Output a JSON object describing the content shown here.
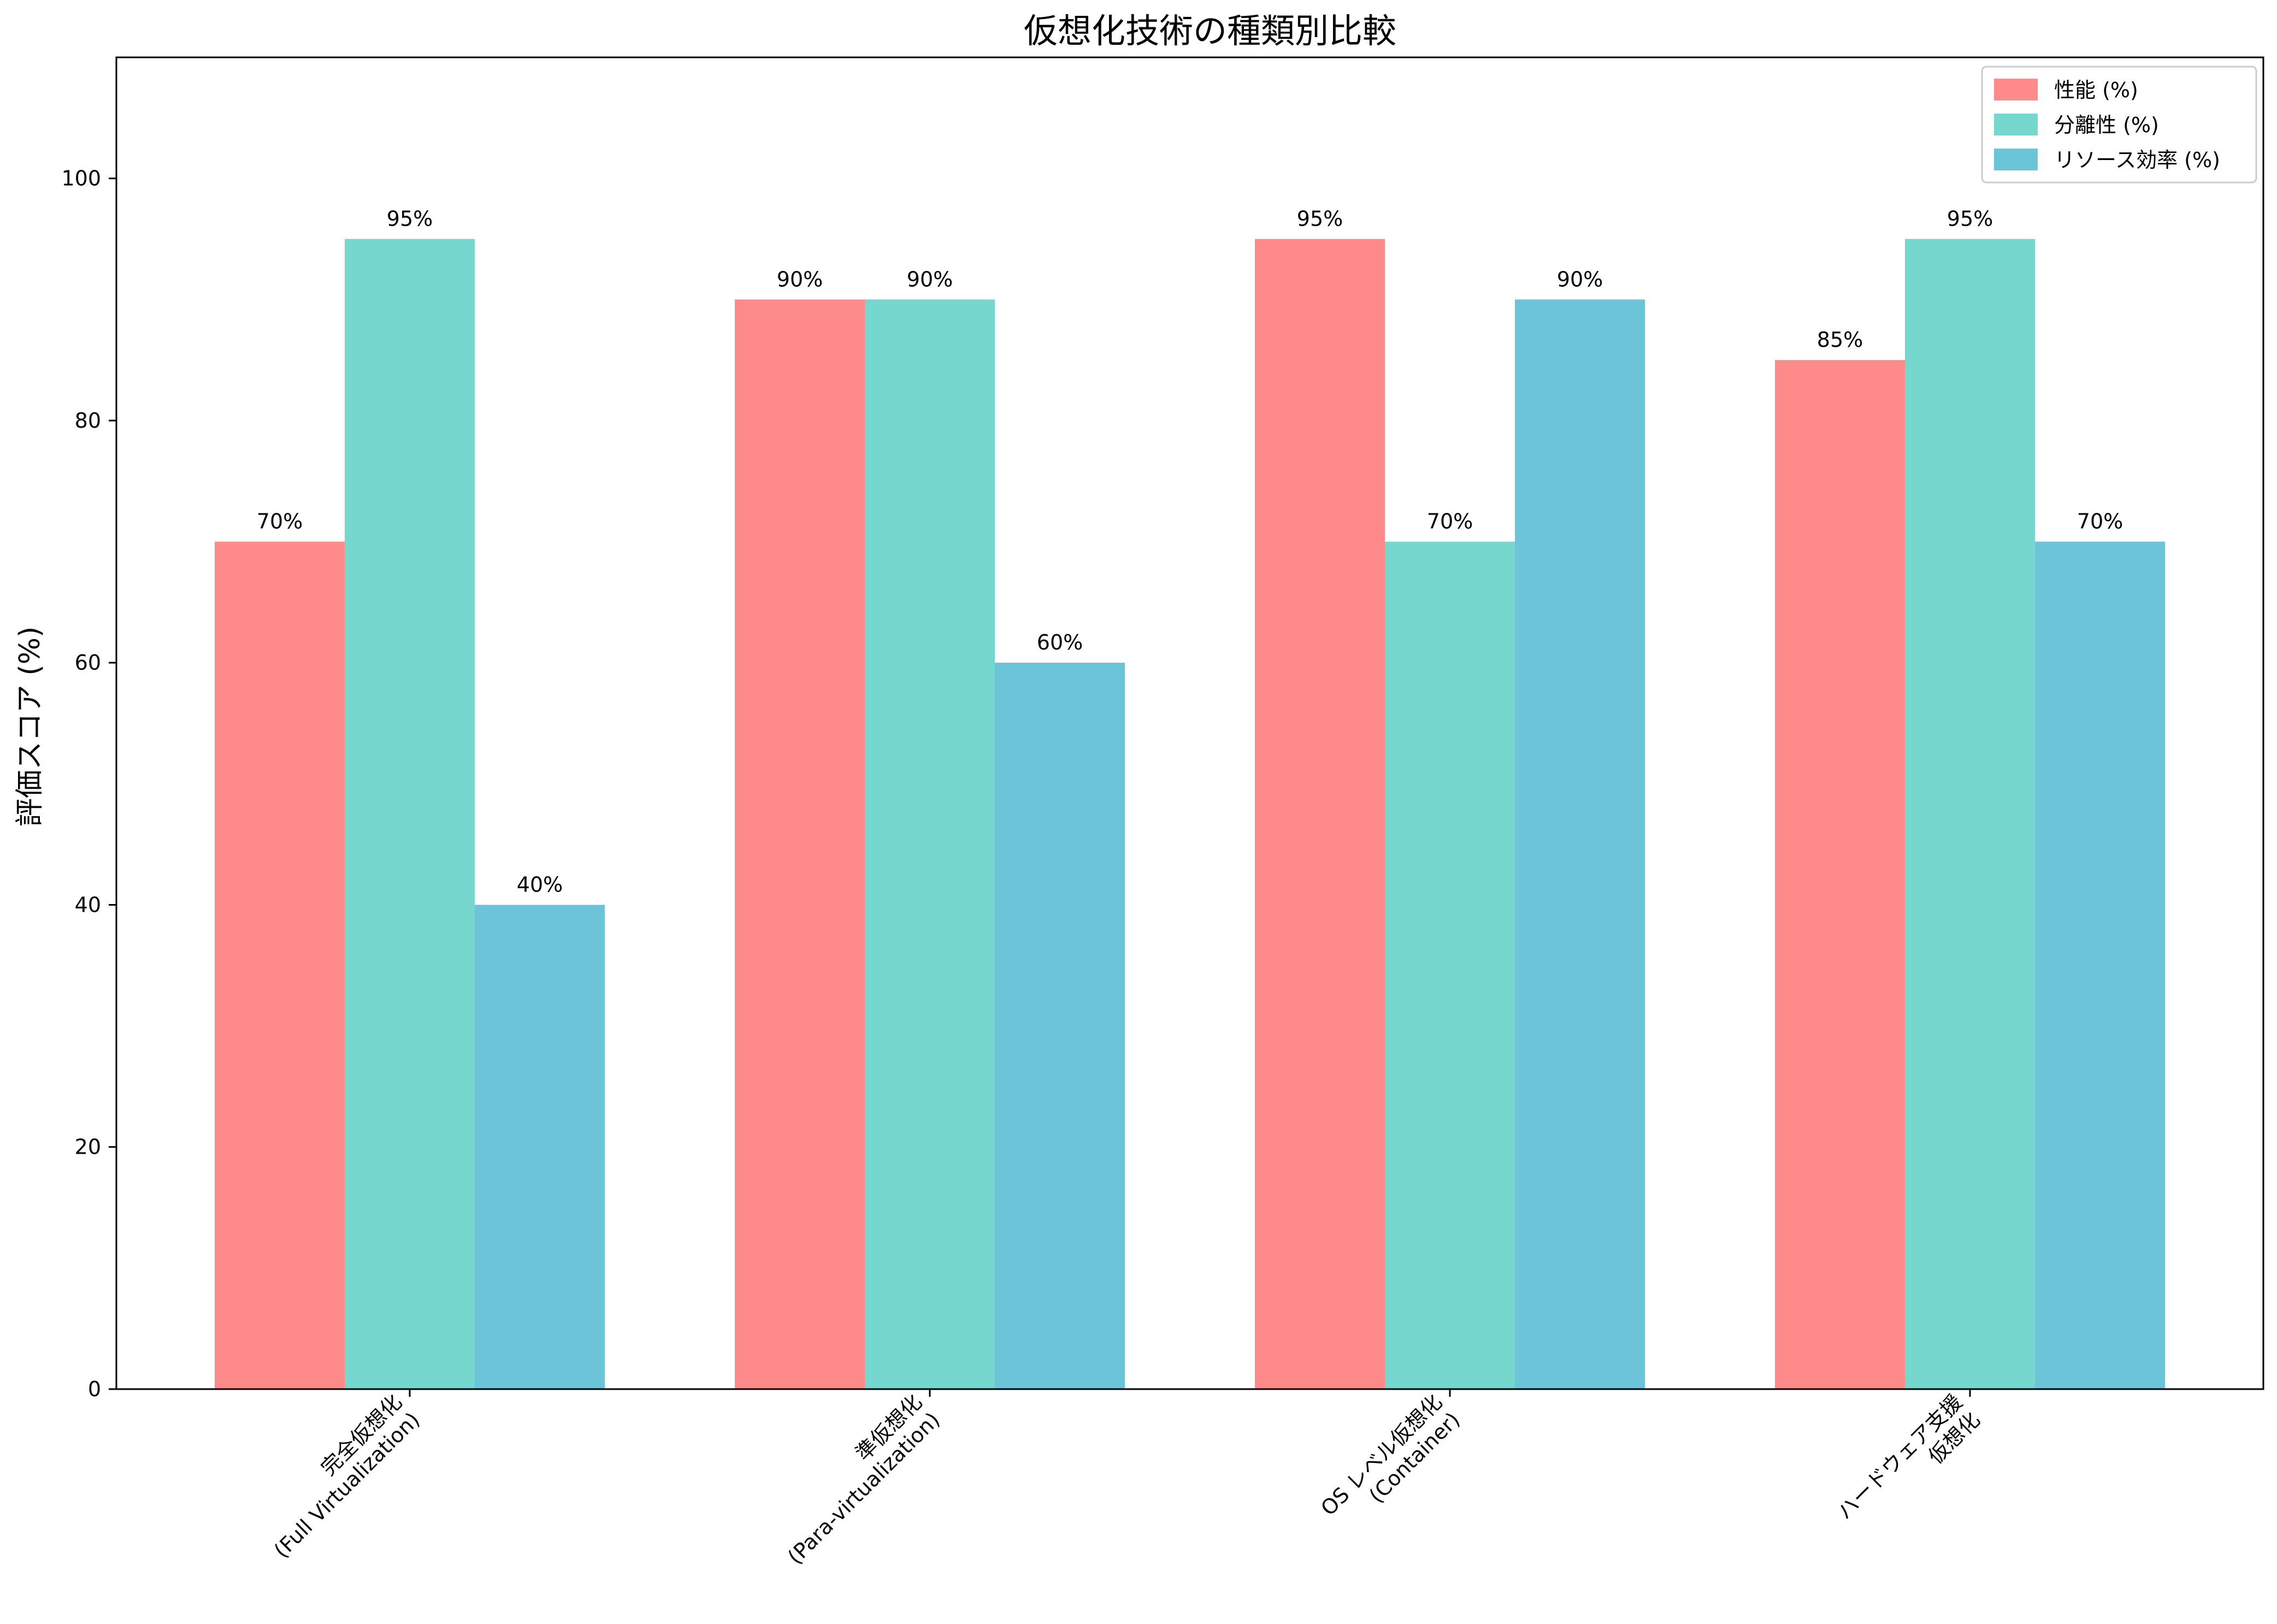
{
  "chart_data": {
    "type": "bar",
    "title": "仮想化技術の種類別比較",
    "xlabel": "",
    "ylabel": "評価スコア (%)",
    "ylim": [
      0,
      110
    ],
    "yticks": [
      0,
      20,
      40,
      60,
      80,
      100
    ],
    "grid": false,
    "legend_position": "top-right",
    "categories": [
      [
        "完全仮想化",
        "(Full Virtualization)"
      ],
      [
        "準仮想化",
        "(Para-virtualization)"
      ],
      [
        "OS レベル仮想化",
        "(Container)"
      ],
      [
        "ハードウェア支援",
        "仮想化"
      ]
    ],
    "series": [
      {
        "name": "性能 (%)",
        "color": "#ff8a8a",
        "values": [
          70,
          90,
          95,
          85
        ]
      },
      {
        "name": "分離性 (%)",
        "color": "#76d7cf",
        "values": [
          95,
          90,
          70,
          95
        ]
      },
      {
        "name": "リソース効率 (%)",
        "color": "#6bc4d8",
        "values": [
          40,
          60,
          90,
          70
        ]
      }
    ],
    "value_suffix": "%"
  }
}
